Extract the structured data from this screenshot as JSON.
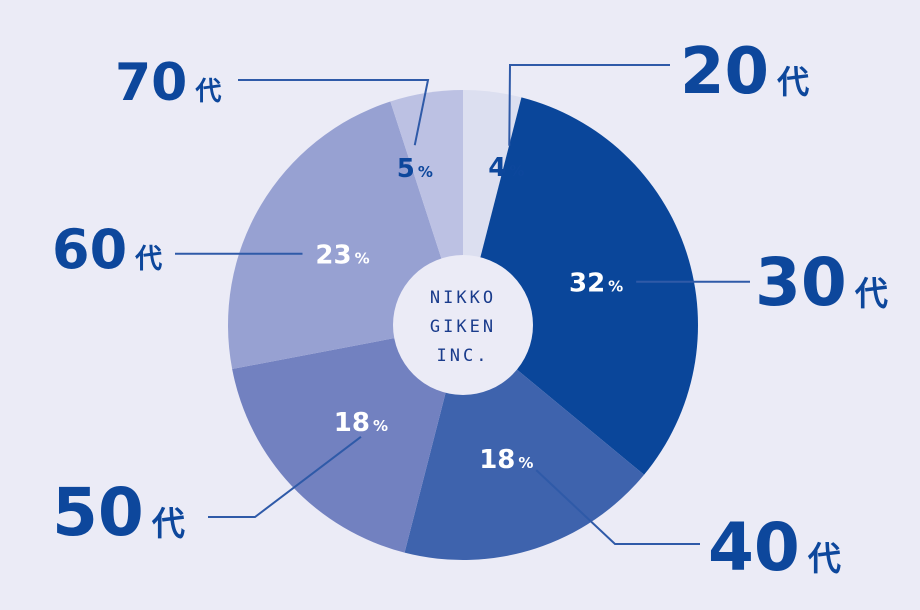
{
  "chart_data": {
    "type": "pie",
    "title": "",
    "center_text": [
      "NIKKO",
      "GIKEN",
      "INC."
    ],
    "unit": "%",
    "start_angle_deg": 0,
    "direction": "clockwise",
    "slices": [
      {
        "label": "20代",
        "num": "20",
        "kanji": "代",
        "value": 4,
        "color": "#dcdff0"
      },
      {
        "label": "30代",
        "num": "30",
        "kanji": "代",
        "value": 32,
        "color": "#0a469a"
      },
      {
        "label": "40代",
        "num": "40",
        "kanji": "代",
        "value": 18,
        "color": "#3e63ad"
      },
      {
        "label": "50代",
        "num": "50",
        "kanji": "代",
        "value": 18,
        "color": "#7281c0"
      },
      {
        "label": "60代",
        "num": "60",
        "kanji": "代",
        "value": 23,
        "color": "#97a1d2"
      },
      {
        "label": "70代",
        "num": "70",
        "kanji": "代",
        "value": 5,
        "color": "#bcc1e3"
      }
    ],
    "colors": {
      "background": "#ebebf6",
      "label": "#0d479c",
      "line": "#2f5aa8",
      "center": "#ebebf6"
    }
  }
}
